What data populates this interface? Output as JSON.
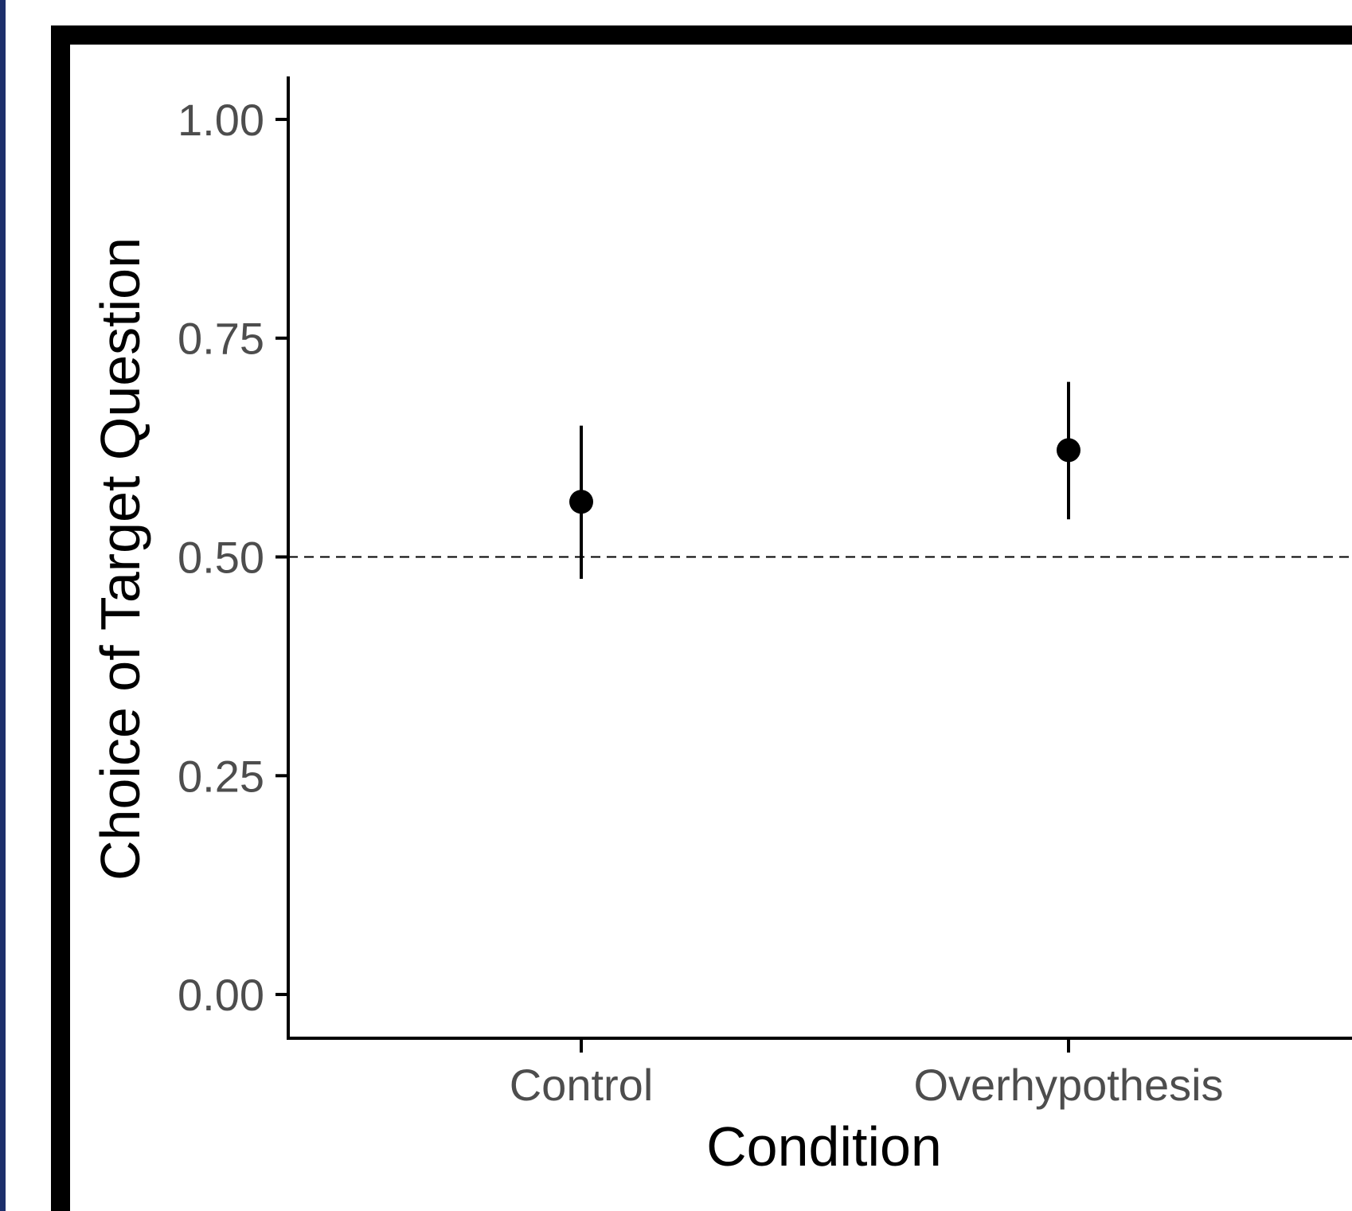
{
  "chart_data": {
    "type": "scatter",
    "xlabel": "Condition",
    "ylabel": "Choice of Target Question",
    "categories": [
      "Control",
      "Overhypothesis"
    ],
    "series": [
      {
        "values": [
          0.563,
          0.622
        ],
        "ci_low": [
          0.475,
          0.543
        ],
        "ci_high": [
          0.65,
          0.7
        ]
      }
    ],
    "yticks": [
      "0.00",
      "0.25",
      "0.50",
      "0.75",
      "1.00"
    ],
    "ylim": [
      -0.05,
      1.05
    ],
    "reference_line": {
      "y": 0.5,
      "style": "dashed"
    },
    "grid": false
  },
  "colors": {
    "point": "#000000",
    "frame": "#000000",
    "tick_label": "#4d4d4d",
    "left_edge": "#1c2f6b"
  }
}
